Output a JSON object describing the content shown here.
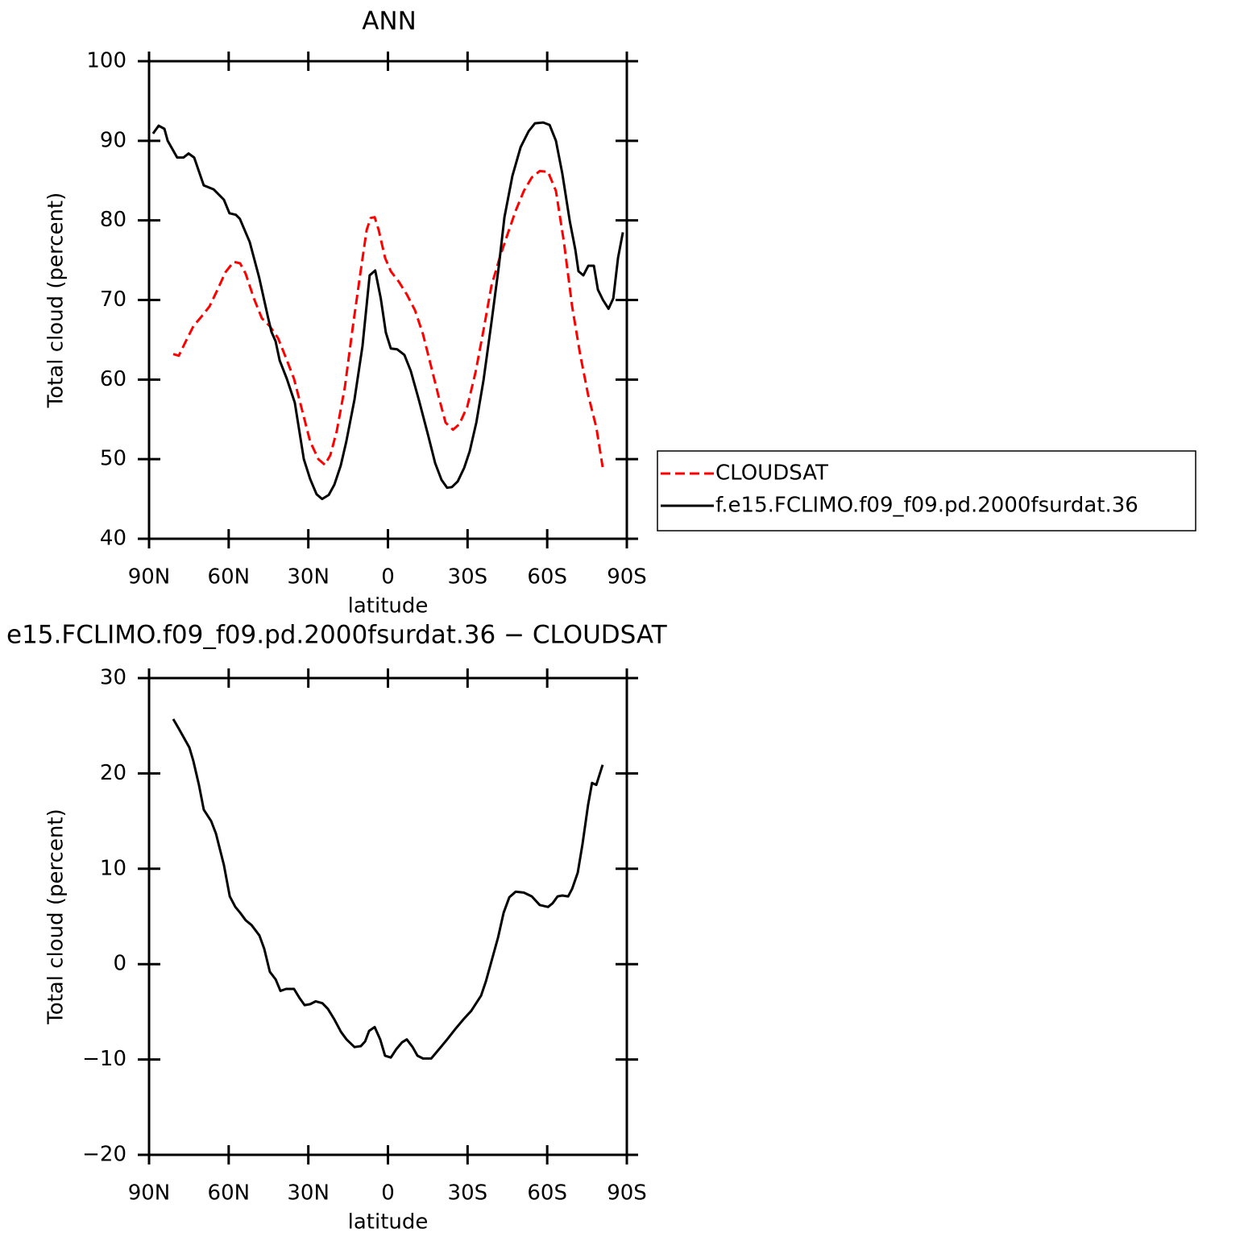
{
  "chart_data": [
    {
      "type": "line",
      "title": "ANN",
      "xlabel": "latitude",
      "ylabel": "Total cloud (percent)",
      "xlim": [
        90,
        -90
      ],
      "ylim": [
        40,
        100
      ],
      "xticks": [
        {
          "value": 90,
          "label": "90N"
        },
        {
          "value": 60,
          "label": "60N"
        },
        {
          "value": 30,
          "label": "30N"
        },
        0,
        {
          "value": -30,
          "label": "30S"
        },
        {
          "value": -60,
          "label": "60S"
        },
        {
          "value": -90,
          "label": "90S"
        }
      ],
      "yticks": [
        40,
        50,
        60,
        70,
        80,
        90,
        100
      ],
      "legend": "right",
      "series": [
        {
          "name": "CLOUDSAT",
          "color": "#ff0000",
          "linestyle": "dashed",
          "x": [
            80.9,
            78.8,
            76.3,
            73.3,
            70.3,
            67.2,
            64.2,
            61.2,
            58.1,
            55.7,
            53.6,
            50.5,
            47.5,
            44.5,
            41.4,
            38.4,
            35.4,
            32.3,
            29.3,
            26.2,
            23.8,
            21.7,
            19.3,
            16.2,
            13.2,
            10.2,
            8.0,
            6.5,
            5.0,
            3.5,
            1.1,
            -1.1,
            -4.1,
            -7.1,
            -10.2,
            -13.2,
            -16.3,
            -19.3,
            -21.7,
            -24.5,
            -26.9,
            -29.9,
            -33.0,
            -36.0,
            -39.0,
            -42.1,
            -45.1,
            -48.1,
            -51.2,
            -54.2,
            -57.2,
            -60.3,
            -63.3,
            -66.3,
            -69.4,
            -72.4,
            -75.4,
            -78.5,
            -80.9
          ],
          "values": [
            63.2,
            63.0,
            64.7,
            66.7,
            67.9,
            69.2,
            71.3,
            73.5,
            74.8,
            74.6,
            73.3,
            70.2,
            67.7,
            66.7,
            65.2,
            62.7,
            60.1,
            56.1,
            52.2,
            50.0,
            49.3,
            50.5,
            53.5,
            59.1,
            66.7,
            73.8,
            78.8,
            80.3,
            80.4,
            78.8,
            75.3,
            73.6,
            72.3,
            70.7,
            68.7,
            65.7,
            61.6,
            57.6,
            54.6,
            53.7,
            54.4,
            56.6,
            60.9,
            66.2,
            71.8,
            75.3,
            78.3,
            81.2,
            83.7,
            85.4,
            86.2,
            86.1,
            83.7,
            77.3,
            69.2,
            63.2,
            58.1,
            54.0,
            49.0
          ]
        },
        {
          "name": "f.e15.FCLIMO.f09_f09.pd.2000fsurdat.36",
          "color": "#000000",
          "linestyle": "solid",
          "x": [
            88.5,
            86.4,
            84.2,
            83.0,
            79.4,
            77.0,
            75.1,
            73.0,
            69.4,
            65.7,
            61.8,
            59.7,
            57.3,
            55.8,
            52.1,
            48.5,
            45.1,
            43.9,
            42.3,
            40.8,
            38.1,
            35.1,
            31.7,
            29.3,
            26.9,
            24.8,
            22.3,
            20.2,
            17.8,
            15.7,
            12.6,
            9.6,
            6.9,
            4.8,
            2.7,
            0.8,
            -1.1,
            -3.5,
            -6.2,
            -8.6,
            -11.7,
            -15.3,
            -17.8,
            -20.2,
            -22.3,
            -24.1,
            -26.3,
            -28.7,
            -30.8,
            -33.3,
            -36.0,
            -39.0,
            -41.8,
            -43.9,
            -46.9,
            -50.0,
            -53.0,
            -55.4,
            -58.5,
            -60.9,
            -63.3,
            -65.7,
            -68.5,
            -70.6,
            -71.8,
            -73.6,
            -75.5,
            -77.6,
            -79.1,
            -81.0,
            -83.1,
            -84.9,
            -86.7,
            -88.5
          ],
          "values": [
            90.9,
            91.9,
            91.5,
            90.0,
            87.9,
            87.9,
            88.4,
            87.9,
            84.4,
            83.9,
            82.6,
            80.9,
            80.7,
            80.2,
            77.3,
            72.8,
            67.7,
            66.0,
            64.8,
            62.4,
            60.1,
            57.1,
            50.0,
            47.5,
            45.6,
            45.0,
            45.5,
            46.8,
            49.2,
            52.2,
            57.5,
            64.2,
            73.1,
            73.7,
            70.2,
            65.9,
            63.9,
            63.8,
            63.1,
            61.1,
            57.4,
            52.8,
            49.5,
            47.4,
            46.4,
            46.5,
            47.2,
            48.9,
            51.0,
            54.6,
            59.9,
            67.2,
            74.3,
            80.4,
            85.6,
            89.2,
            91.2,
            92.2,
            92.3,
            92.0,
            90.0,
            85.9,
            79.9,
            76.3,
            73.6,
            73.1,
            74.3,
            74.3,
            71.3,
            70.0,
            68.9,
            70.2,
            75.3,
            78.5
          ]
        }
      ]
    },
    {
      "type": "line",
      "title": "e15.FCLIMO.f09_f09.pd.2000fsurdat.36 − CLOUDSAT",
      "xlabel": "latitude",
      "ylabel": "Total cloud (percent)",
      "xlim": [
        90,
        -90
      ],
      "ylim": [
        -20,
        30
      ],
      "xticks": [
        {
          "value": 90,
          "label": "90N"
        },
        {
          "value": 60,
          "label": "60N"
        },
        {
          "value": 30,
          "label": "30N"
        },
        0,
        {
          "value": -30,
          "label": "30S"
        },
        {
          "value": -60,
          "label": "60S"
        },
        {
          "value": -90,
          "label": "90S"
        }
      ],
      "yticks": [
        {
          "value": -20,
          "label": "−20"
        },
        {
          "value": -10,
          "label": "−10"
        },
        0,
        10,
        20,
        30
      ],
      "series": [
        {
          "color": "#000000",
          "linestyle": "solid",
          "x": [
            80.9,
            78.8,
            74.8,
            73.3,
            71.2,
            69.4,
            66.6,
            64.8,
            61.8,
            59.6,
            57.5,
            55.7,
            53.6,
            51.4,
            48.4,
            46.6,
            44.5,
            42.3,
            40.5,
            38.4,
            35.4,
            33.2,
            31.4,
            29.3,
            27.2,
            24.7,
            22.6,
            20.2,
            17.7,
            15.6,
            12.6,
            10.2,
            8.6,
            7.1,
            5.0,
            2.9,
            1.1,
            -1.1,
            -3.2,
            -5.3,
            -7.1,
            -9.3,
            -11.1,
            -13.2,
            -16.3,
            -19.3,
            -22.3,
            -25.4,
            -28.4,
            -31.4,
            -35.1,
            -36.9,
            -39.0,
            -41.5,
            -43.6,
            -45.7,
            -48.1,
            -51.2,
            -54.2,
            -57.2,
            -60.3,
            -62.1,
            -63.9,
            -65.7,
            -67.9,
            -69.4,
            -71.5,
            -73.3,
            -75.4,
            -76.9,
            -78.5,
            -80.9
          ],
          "values": [
            25.7,
            24.7,
            22.7,
            21.3,
            18.8,
            16.2,
            15.0,
            13.7,
            10.4,
            7.1,
            6.0,
            5.4,
            4.6,
            4.1,
            3.0,
            1.6,
            -0.8,
            -1.6,
            -2.8,
            -2.6,
            -2.6,
            -3.6,
            -4.3,
            -4.2,
            -3.9,
            -4.1,
            -4.7,
            -5.8,
            -7.1,
            -7.9,
            -8.7,
            -8.6,
            -8.1,
            -7.0,
            -6.6,
            -7.9,
            -9.6,
            -9.8,
            -8.9,
            -8.2,
            -7.9,
            -8.7,
            -9.6,
            -9.9,
            -9.9,
            -8.9,
            -7.9,
            -6.8,
            -5.8,
            -4.9,
            -3.3,
            -1.8,
            0.3,
            2.8,
            5.4,
            7.0,
            7.6,
            7.5,
            7.1,
            6.2,
            6.0,
            6.4,
            7.1,
            7.2,
            7.1,
            7.9,
            9.6,
            12.6,
            16.7,
            19.0,
            18.8,
            20.9
          ]
        }
      ]
    }
  ]
}
